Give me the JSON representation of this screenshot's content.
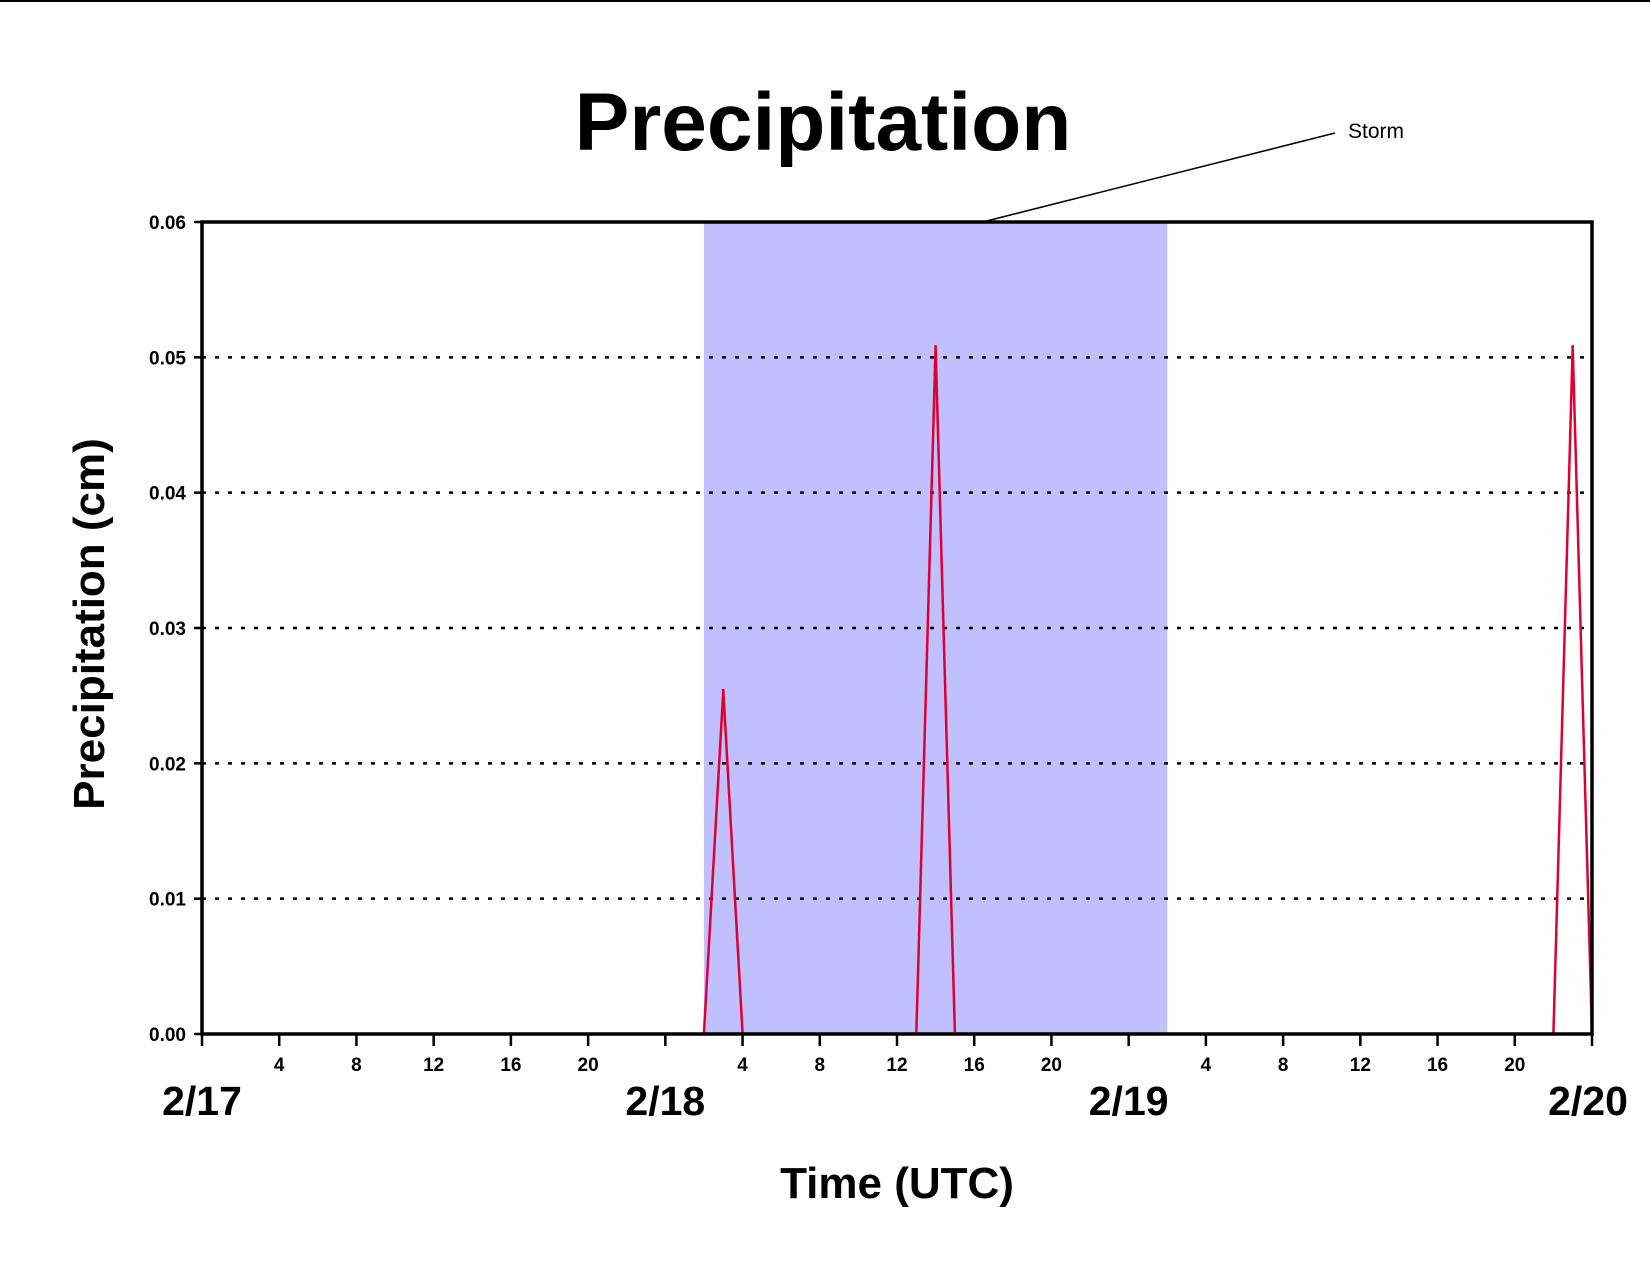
{
  "chart_data": {
    "type": "line",
    "title": "Precipitation",
    "xlabel": "Time (UTC)",
    "ylabel": "Precipitation (cm)",
    "ylim": [
      0,
      0.06
    ],
    "yticks": [
      "0.00",
      "0.01",
      "0.02",
      "0.03",
      "0.04",
      "0.05",
      "0.06"
    ],
    "xlim": [
      "2/17 00:00",
      "2/20 00:00"
    ],
    "x_unit": "hours UTC",
    "day_labels": [
      {
        "label": "2/17",
        "hour": 0
      },
      {
        "label": "2/18",
        "hour": 24
      },
      {
        "label": "2/19",
        "hour": 48
      },
      {
        "label": "2/20",
        "hour": 72
      }
    ],
    "hour_tick_labels": [
      "4",
      "8",
      "12",
      "16",
      "20"
    ],
    "grid": "horizontal dotted at 0.01–0.05",
    "colors": {
      "series": "#dd0033",
      "storm": "#c0c0ff",
      "axis": "#000000"
    },
    "annotations": [
      {
        "text": "Storm",
        "span": [
          "2/18 02:00",
          "2/19 02:00"
        ]
      }
    ],
    "series": [
      {
        "x": [
          "2/17 00:00",
          "2/18 02:00",
          "2/18 03:00",
          "2/18 04:00",
          "2/18 13:00",
          "2/18 14:00",
          "2/18 15:00",
          "2/19 22:00",
          "2/19 23:00",
          "2/20 00:00"
        ],
        "values": [
          0.0,
          0.0,
          0.0254,
          0.0,
          0.0,
          0.0508,
          0.0,
          0.0,
          0.0508,
          0.0
        ]
      }
    ]
  }
}
